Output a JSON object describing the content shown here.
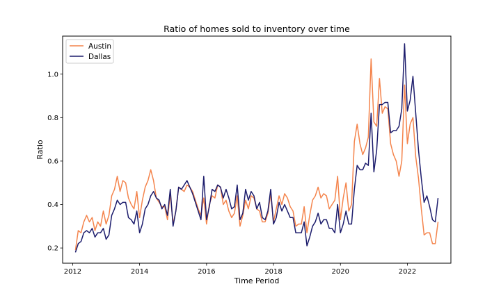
{
  "chart_data": {
    "type": "line",
    "title": "Ratio of homes sold to inventory over time",
    "xlabel": "Time Period",
    "ylabel": "Ratio",
    "xlim": [
      2011.7,
      2023.3
    ],
    "ylim": [
      0.13,
      1.175
    ],
    "xticks": [
      2012,
      2014,
      2016,
      2018,
      2020,
      2022
    ],
    "yticks": [
      0.2,
      0.4,
      0.6,
      0.8,
      1.0
    ],
    "xtick_labels": [
      "2012",
      "2014",
      "2016",
      "2018",
      "2020",
      "2022"
    ],
    "ytick_labels": [
      "0.2",
      "0.4",
      "0.6",
      "0.8",
      "1.0"
    ],
    "grid": false,
    "legend_position": "top-left",
    "series": [
      {
        "name": "Austin",
        "color": "#f4844c",
        "x_start": 2012.083,
        "x_step": 0.08333,
        "values": [
          0.19,
          0.28,
          0.27,
          0.32,
          0.35,
          0.32,
          0.34,
          0.28,
          0.32,
          0.3,
          0.37,
          0.31,
          0.35,
          0.44,
          0.47,
          0.53,
          0.46,
          0.51,
          0.5,
          0.43,
          0.4,
          0.38,
          0.46,
          0.34,
          0.42,
          0.48,
          0.51,
          0.56,
          0.51,
          0.43,
          0.41,
          0.39,
          0.39,
          0.33,
          0.45,
          0.31,
          0.37,
          0.48,
          0.47,
          0.46,
          0.49,
          0.48,
          0.46,
          0.42,
          0.38,
          0.35,
          0.43,
          0.31,
          0.4,
          0.44,
          0.43,
          0.49,
          0.48,
          0.4,
          0.42,
          0.37,
          0.34,
          0.36,
          0.44,
          0.3,
          0.35,
          0.42,
          0.38,
          0.44,
          0.43,
          0.38,
          0.37,
          0.32,
          0.32,
          0.36,
          0.45,
          0.32,
          0.38,
          0.44,
          0.4,
          0.45,
          0.43,
          0.39,
          0.37,
          0.3,
          0.31,
          0.31,
          0.39,
          0.27,
          0.35,
          0.42,
          0.44,
          0.48,
          0.43,
          0.45,
          0.44,
          0.38,
          0.4,
          0.42,
          0.53,
          0.33,
          0.43,
          0.5,
          0.37,
          0.4,
          0.69,
          0.77,
          0.68,
          0.63,
          0.66,
          0.71,
          1.07,
          0.78,
          0.76,
          0.98,
          0.82,
          0.85,
          0.84,
          0.68,
          0.63,
          0.6,
          0.53,
          0.6,
          0.95,
          0.68,
          0.77,
          0.8,
          0.62,
          0.52,
          0.38,
          0.26,
          0.27,
          0.27,
          0.22,
          0.22,
          0.32
        ]
      },
      {
        "name": "Dallas",
        "color": "#1c1c6c",
        "x_start": 2012.083,
        "x_step": 0.08333,
        "values": [
          0.18,
          0.22,
          0.23,
          0.27,
          0.28,
          0.27,
          0.29,
          0.25,
          0.27,
          0.27,
          0.29,
          0.24,
          0.26,
          0.35,
          0.38,
          0.42,
          0.4,
          0.41,
          0.41,
          0.34,
          0.33,
          0.31,
          0.37,
          0.27,
          0.31,
          0.38,
          0.4,
          0.44,
          0.46,
          0.43,
          0.42,
          0.38,
          0.4,
          0.35,
          0.47,
          0.3,
          0.37,
          0.48,
          0.47,
          0.49,
          0.51,
          0.48,
          0.45,
          0.41,
          0.37,
          0.33,
          0.53,
          0.33,
          0.39,
          0.47,
          0.46,
          0.49,
          0.48,
          0.43,
          0.47,
          0.43,
          0.38,
          0.39,
          0.49,
          0.33,
          0.36,
          0.47,
          0.42,
          0.46,
          0.44,
          0.38,
          0.41,
          0.34,
          0.33,
          0.37,
          0.47,
          0.31,
          0.34,
          0.41,
          0.37,
          0.4,
          0.37,
          0.34,
          0.34,
          0.27,
          0.27,
          0.27,
          0.32,
          0.21,
          0.25,
          0.3,
          0.32,
          0.36,
          0.31,
          0.33,
          0.33,
          0.29,
          0.29,
          0.27,
          0.4,
          0.27,
          0.31,
          0.37,
          0.31,
          0.31,
          0.47,
          0.58,
          0.56,
          0.56,
          0.59,
          0.58,
          0.82,
          0.55,
          0.65,
          0.86,
          0.86,
          0.87,
          0.87,
          0.73,
          0.74,
          0.74,
          0.76,
          0.84,
          1.14,
          0.83,
          0.88,
          0.99,
          0.82,
          0.65,
          0.52,
          0.41,
          0.44,
          0.39,
          0.33,
          0.32,
          0.43
        ]
      }
    ]
  }
}
